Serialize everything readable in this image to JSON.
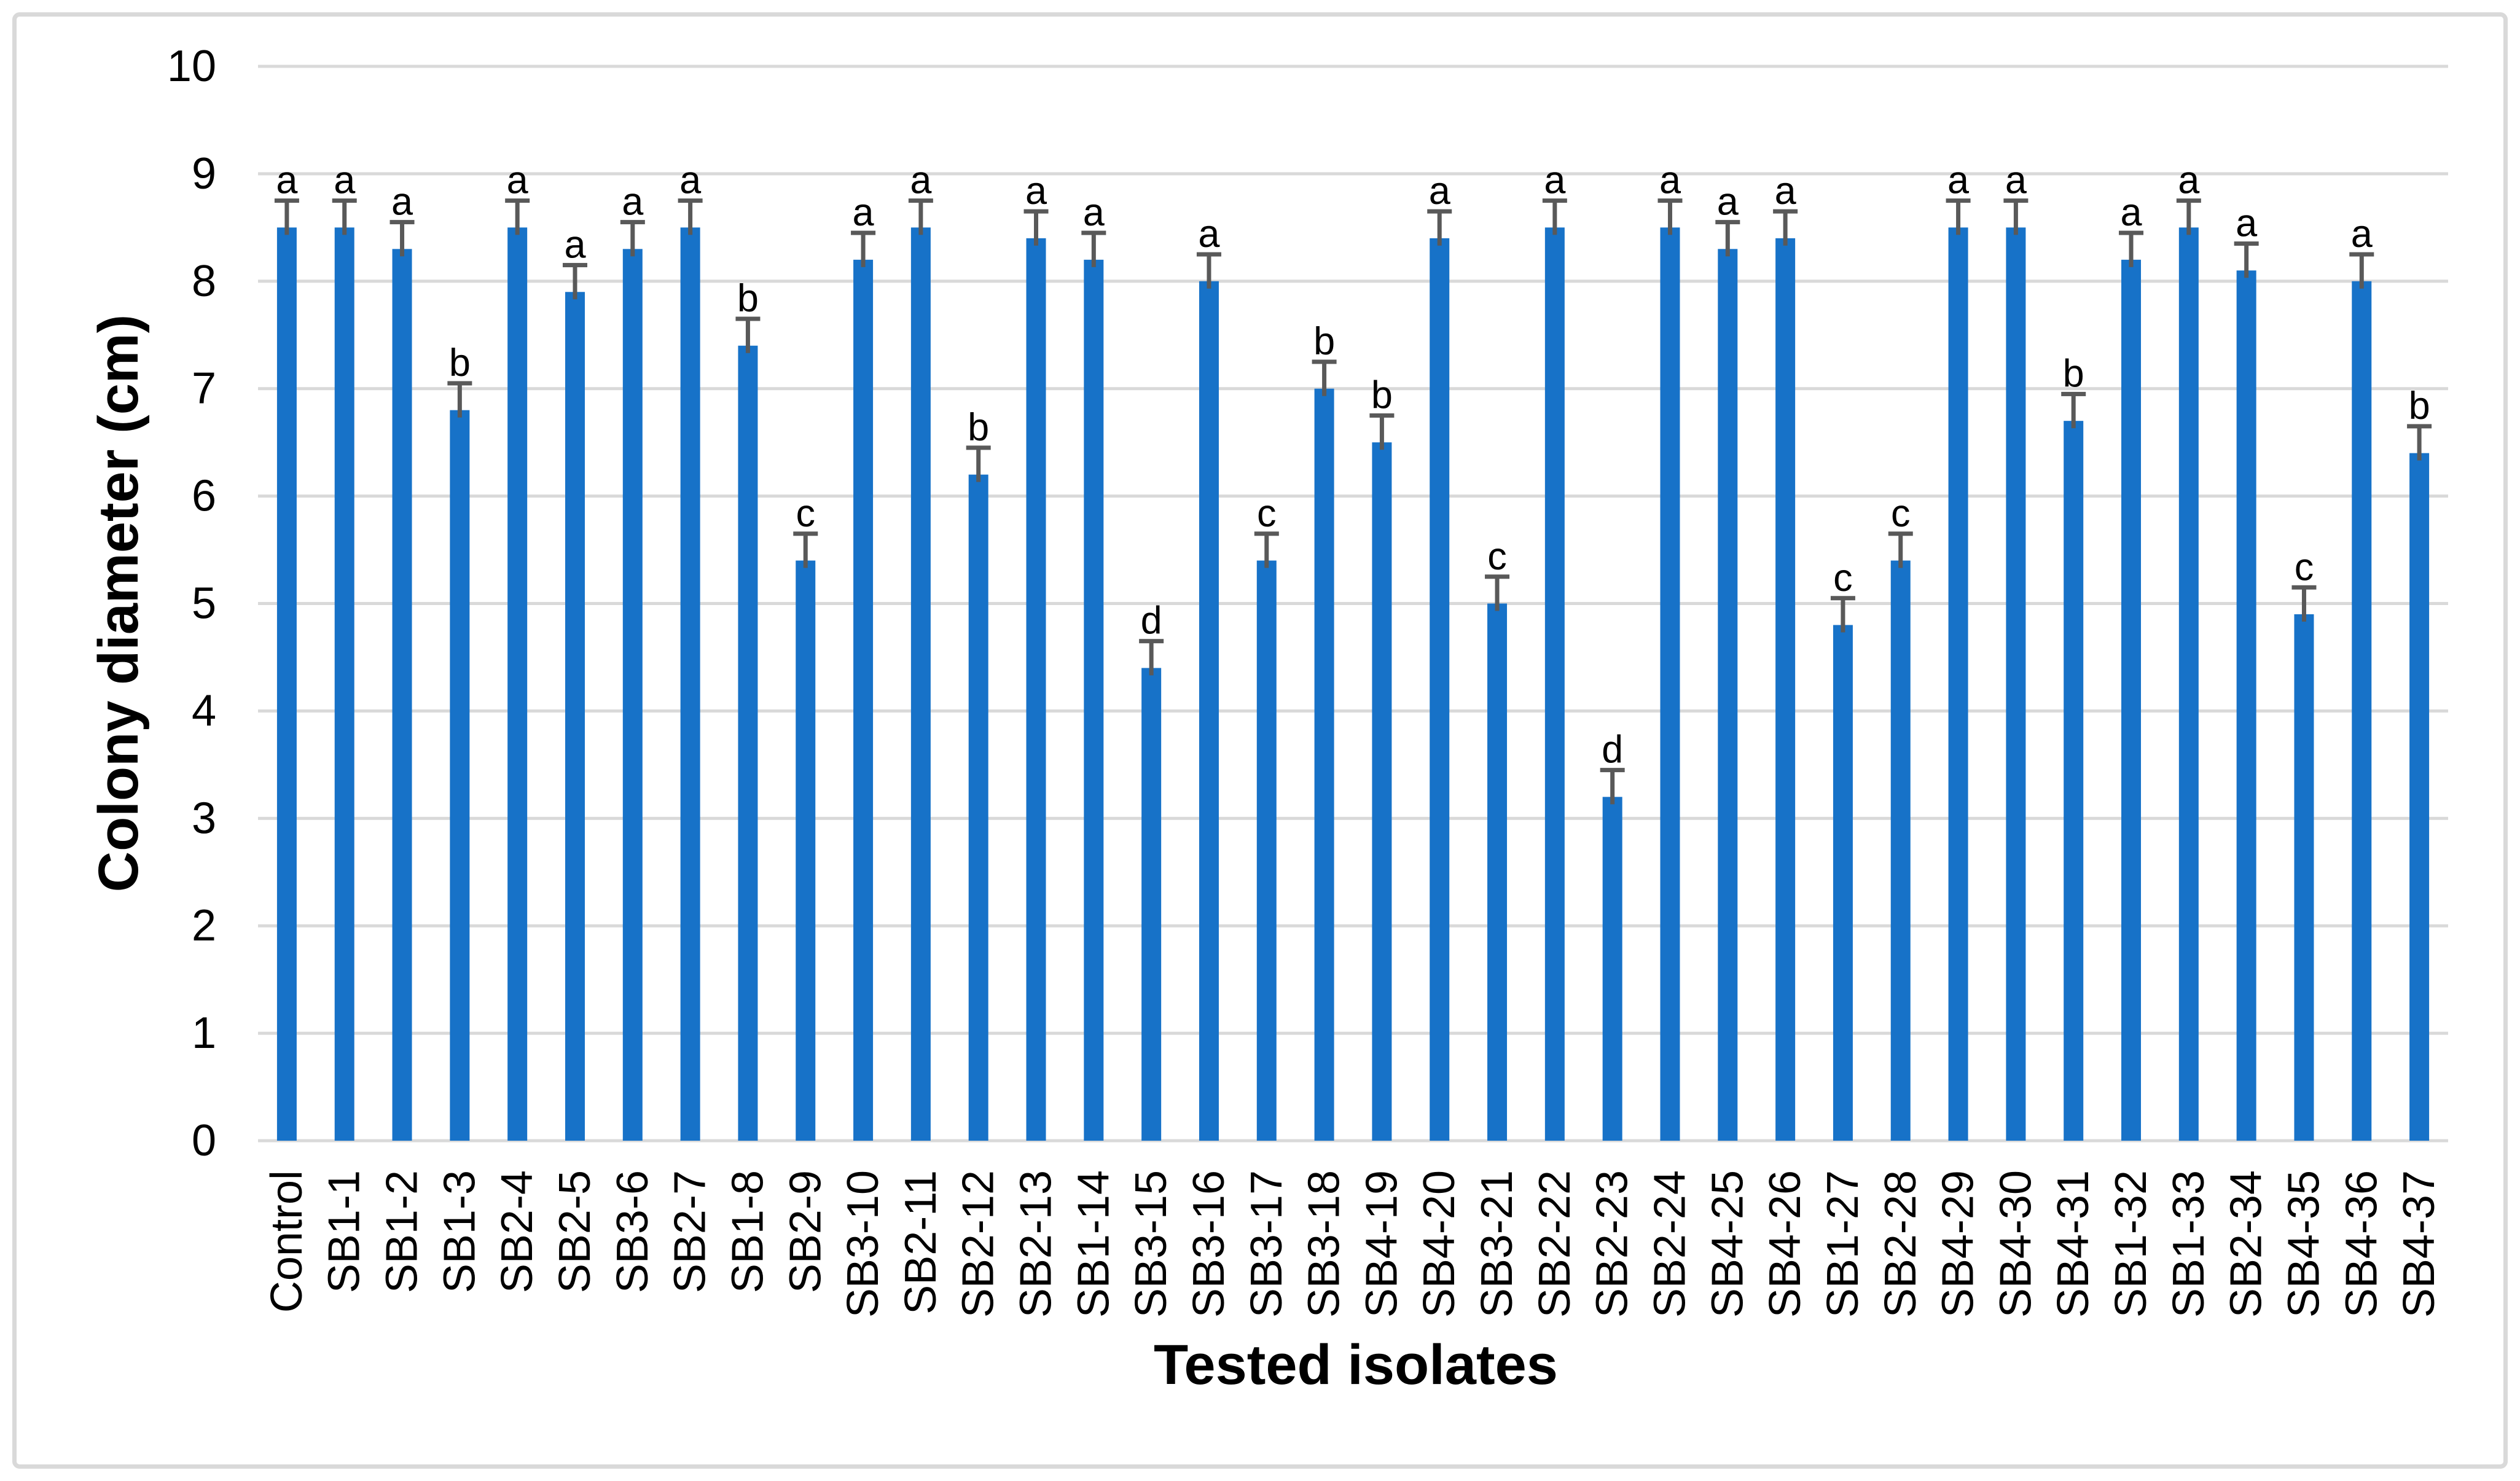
{
  "figure": {
    "background_color": "#FFFFFF",
    "border_color": "#D9D9D9"
  },
  "chart_data": {
    "type": "bar",
    "title": "",
    "xlabel": "Tested isolates",
    "ylabel": "Colony diameter (cm)",
    "ylim": [
      0,
      10
    ],
    "ytick_step": 1,
    "ytick_labels": [
      "0",
      "1",
      "2",
      "3",
      "4",
      "5",
      "6",
      "7",
      "8",
      "9",
      "10"
    ],
    "grid": true,
    "legend": "none",
    "bar_color": "#1772C8",
    "error_bar_color": "#595959",
    "gridline_color": "#D9D9D9",
    "text_color": "#000000",
    "error_bar": 0.25,
    "categories": [
      "Control",
      "SB1-1",
      "SB1-2",
      "SB1-3",
      "SB2-4",
      "SB2-5",
      "SB3-6",
      "SB2-7",
      "SB1-8",
      "SB2-9",
      "SB3-10",
      "SB2-11",
      "SB2-12",
      "SB2-13",
      "SB1-14",
      "SB3-15",
      "SB3-16",
      "SB3-17",
      "SB3-18",
      "SB4-19",
      "SB4-20",
      "SB3-21",
      "SB2-22",
      "SB2-23",
      "SB2-24",
      "SB4-25",
      "SB4-26",
      "SB1-27",
      "SB2-28",
      "SB4-29",
      "SB4-30",
      "SB4-31",
      "SB1-32",
      "SB1-33",
      "SB2-34",
      "SB4-35",
      "SB4-36",
      "SB4-37"
    ],
    "values": [
      8.5,
      8.5,
      8.3,
      6.8,
      8.5,
      7.9,
      8.3,
      8.5,
      7.4,
      5.4,
      8.2,
      8.5,
      6.2,
      8.4,
      8.2,
      4.4,
      8.0,
      5.4,
      7.0,
      6.5,
      8.4,
      5.0,
      8.5,
      3.2,
      8.5,
      8.3,
      8.4,
      4.8,
      5.4,
      8.5,
      8.5,
      6.7,
      8.2,
      8.5,
      8.1,
      4.9,
      8.0,
      6.4
    ],
    "sig_letters": [
      "a",
      "a",
      "a",
      "b",
      "a",
      "a",
      "a",
      "a",
      "b",
      "c",
      "a",
      "a",
      "b",
      "a",
      "a",
      "d",
      "a",
      "c",
      "b",
      "b",
      "a",
      "c",
      "a",
      "d",
      "a",
      "a",
      "a",
      "c",
      "c",
      "a",
      "a",
      "b",
      "a",
      "a",
      "a",
      "c",
      "a",
      "b"
    ]
  }
}
